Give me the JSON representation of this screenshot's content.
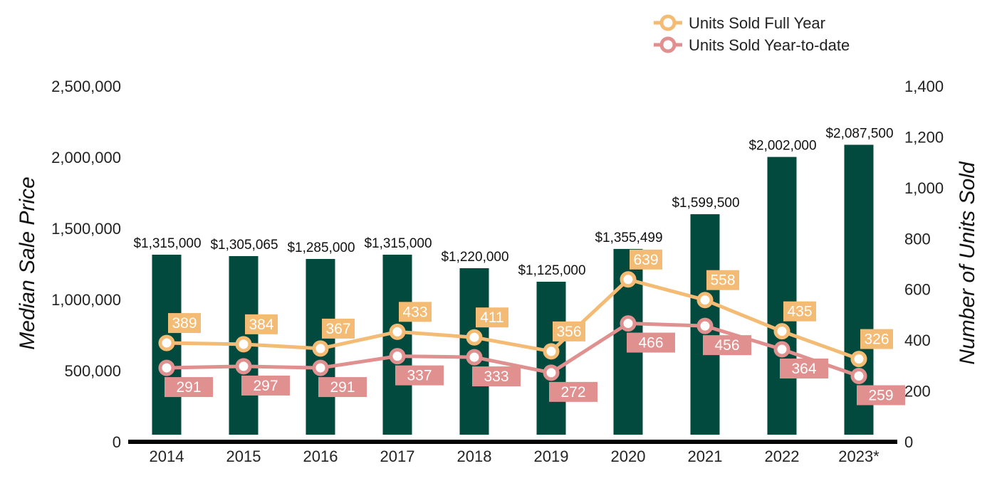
{
  "chart_data": {
    "type": "bar",
    "categories": [
      "2014",
      "2015",
      "2016",
      "2017",
      "2018",
      "2019",
      "2020",
      "2021",
      "2022",
      "2023*"
    ],
    "y_left": {
      "label": "Median Sale Price",
      "range": [
        0,
        2500000
      ],
      "ticks": [
        "0",
        "500,000",
        "1,000,000",
        "1,500,000",
        "2,000,000",
        "2,500,000"
      ],
      "tick_values": [
        0,
        500000,
        1000000,
        1500000,
        2000000,
        2500000
      ]
    },
    "y_right": {
      "label": "Number of Units Sold",
      "range": [
        0,
        1400
      ],
      "ticks": [
        "0",
        "200",
        "400",
        "600",
        "800",
        "1,000",
        "1,200",
        "1,400"
      ],
      "tick_values": [
        0,
        200,
        400,
        600,
        800,
        1000,
        1200,
        1400
      ]
    },
    "bars": {
      "axis": "left",
      "values": [
        1315000,
        1305065,
        1285000,
        1315000,
        1220000,
        1125000,
        1355499,
        1599500,
        2002000,
        2087500
      ],
      "labels": [
        "$1,315,000",
        "$1,305,065",
        "$1,285,000",
        "$1,315,000",
        "$1,220,000",
        "$1,125,000",
        "$1,355,499",
        "$1,599,500",
        "$2,002,000",
        "$2,087,500"
      ],
      "color": "#034a3e"
    },
    "series": [
      {
        "name": "Units Sold Full Year",
        "type": "line",
        "axis": "right",
        "values": [
          389,
          384,
          367,
          433,
          411,
          356,
          639,
          558,
          435,
          326
        ],
        "labels": [
          "389",
          "384",
          "367",
          "433",
          "411",
          "356",
          "639",
          "558",
          "435",
          "326"
        ],
        "color": "#f3bb74"
      },
      {
        "name": "Units Sold Year-to-date",
        "type": "line",
        "axis": "right",
        "values": [
          291,
          297,
          291,
          337,
          333,
          272,
          466,
          456,
          364,
          259
        ],
        "labels": [
          "291",
          "297",
          "291",
          "337",
          "333",
          "272",
          "466",
          "456",
          "364",
          "259"
        ],
        "color": "#e0908f"
      }
    ],
    "legend_position": "top-right",
    "grid": false
  }
}
